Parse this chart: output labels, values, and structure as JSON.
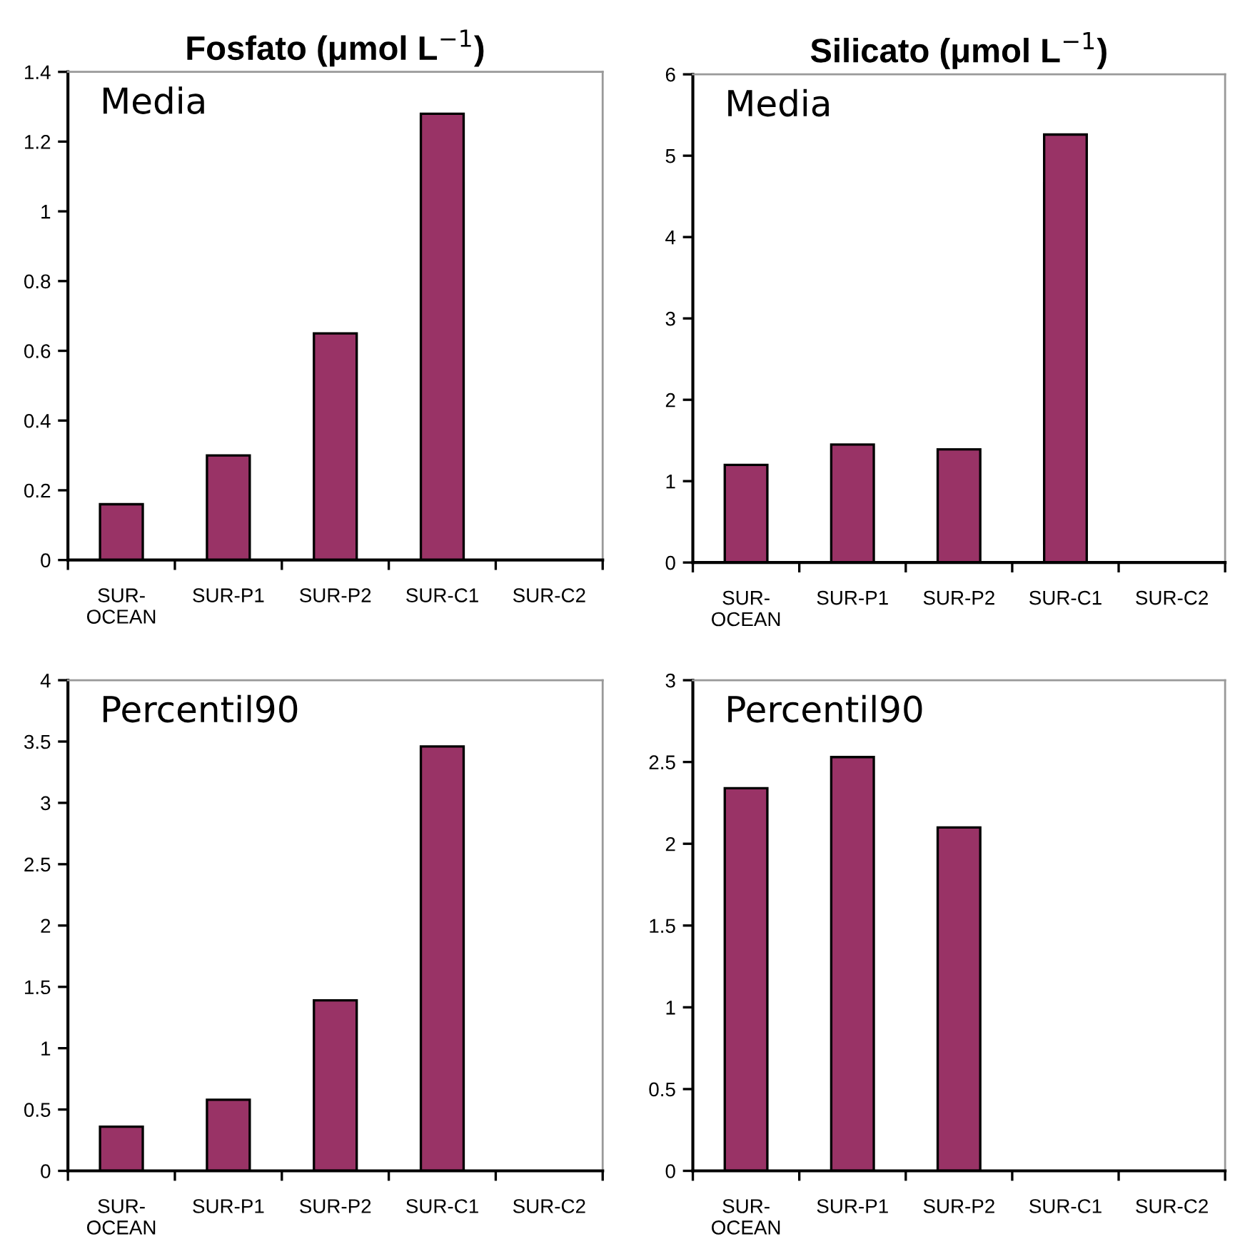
{
  "chart_data": [
    {
      "type": "bar",
      "title": "Fosfato (μmol L$^{−1}$)",
      "annotations": [
        "Media"
      ],
      "categories": [
        "SUR-\nOCEAN",
        "SUR-P1",
        "SUR-P2",
        "SUR-C1",
        "SUR-C2"
      ],
      "values": [
        0.16,
        0.3,
        0.65,
        1.28,
        null
      ],
      "color": "#993366",
      "ylim": [
        0,
        1.4
      ],
      "yticks": [
        0,
        0.2,
        0.4,
        0.6,
        0.8,
        1,
        1.2,
        1.4
      ],
      "grid": false,
      "legend": false
    },
    {
      "type": "bar",
      "title": "Silicato (μmol L$^{−1}$)",
      "annotations": [
        "Media"
      ],
      "categories": [
        "SUR-\nOCEAN",
        "SUR-P1",
        "SUR-P2",
        "SUR-C1",
        "SUR-C2"
      ],
      "values": [
        1.2,
        1.45,
        1.39,
        5.26,
        null
      ],
      "color": "#993366",
      "ylim": [
        0,
        6
      ],
      "yticks": [
        0,
        1,
        2,
        3,
        4,
        5,
        6
      ],
      "grid": false,
      "legend": false
    },
    {
      "type": "bar",
      "annotations": [
        "Percentil90"
      ],
      "categories": [
        "SUR-\nOCEAN",
        "SUR-P1",
        "SUR-P2",
        "SUR-C1",
        "SUR-C2"
      ],
      "values": [
        0.36,
        0.58,
        1.39,
        3.46,
        null
      ],
      "color": "#993366",
      "ylim": [
        0,
        4
      ],
      "yticks": [
        0,
        0.5,
        1,
        1.5,
        2,
        2.5,
        3,
        3.5,
        4
      ],
      "grid": false,
      "legend": false
    },
    {
      "type": "bar",
      "annotations": [
        "Percentil90"
      ],
      "categories": [
        "SUR-\nOCEAN",
        "SUR-P1",
        "SUR-P2",
        "SUR-C1",
        "SUR-C2"
      ],
      "values": [
        2.34,
        2.53,
        2.1,
        null,
        null
      ],
      "color": "#993366",
      "ylim": [
        0,
        3
      ],
      "yticks": [
        0,
        0.5,
        1,
        1.5,
        2,
        2.5,
        3
      ],
      "grid": false,
      "legend": false
    }
  ]
}
